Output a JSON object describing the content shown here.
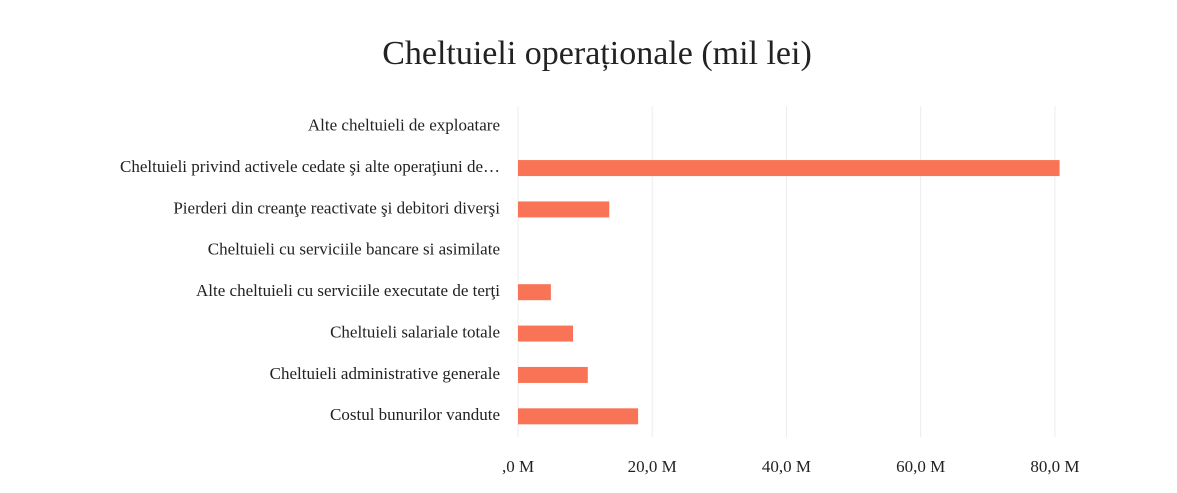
{
  "chart_data": {
    "type": "bar",
    "orientation": "horizontal",
    "title": "Cheltuieli operaționale (mil lei)",
    "categories": [
      "Alte cheltuieli de exploatare",
      "Cheltuieli privind activele cedate şi alte operaţiuni de…",
      "Pierderi din creanţe reactivate şi debitori diverşi",
      "Cheltuieli cu serviciile bancare si asimilate",
      "Alte cheltuieli cu serviciile executate de terţi",
      "Cheltuieli salariale totale",
      "Cheltuieli administrative generale",
      "Costul bunurilor vandute"
    ],
    "values": [
      0,
      80.7,
      13.6,
      0,
      4.9,
      8.2,
      10.4,
      17.9
    ],
    "color": "#f97357",
    "xlim": [
      0,
      90
    ],
    "xticks": [
      {
        "value": 0,
        "label": ",0 M"
      },
      {
        "value": 20,
        "label": "20,0 M"
      },
      {
        "value": 40,
        "label": "40,0 M"
      },
      {
        "value": 60,
        "label": "60,0 M"
      },
      {
        "value": 80,
        "label": "80,0 M"
      }
    ],
    "grid": true
  }
}
